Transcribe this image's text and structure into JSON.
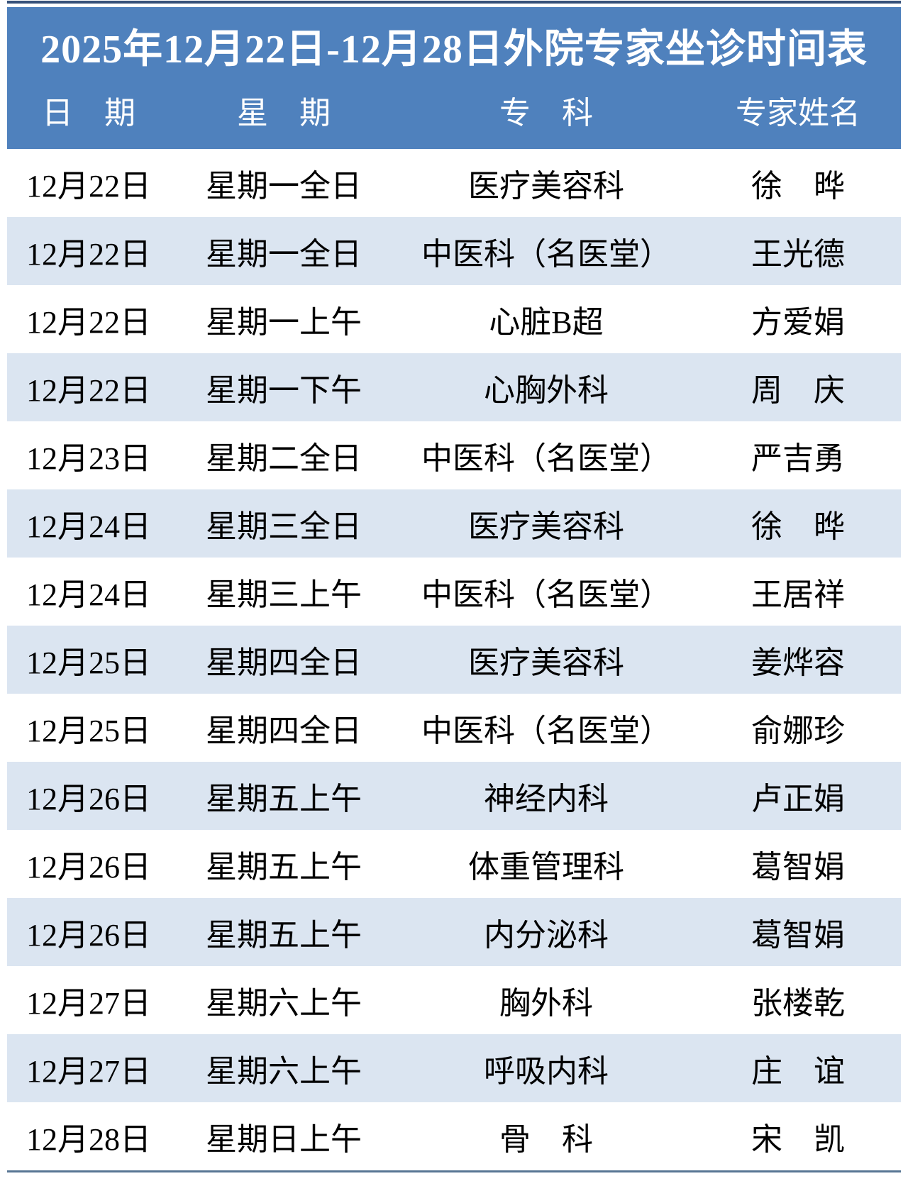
{
  "title": "2025年12月22日-12月28日外院专家坐诊时间表",
  "columns": {
    "date": "日　期",
    "weekday": "星　期",
    "department": "专　科",
    "expert": "专家姓名"
  },
  "rows": [
    {
      "date": "12月22日",
      "weekday": "星期一全日",
      "department": "医疗美容科",
      "expert": "徐　晔"
    },
    {
      "date": "12月22日",
      "weekday": "星期一全日",
      "department": "中医科（名医堂）",
      "expert": "王光德"
    },
    {
      "date": "12月22日",
      "weekday": "星期一上午",
      "department": "心脏B超",
      "expert": "方爱娟"
    },
    {
      "date": "12月22日",
      "weekday": "星期一下午",
      "department": "心胸外科",
      "expert": "周　庆"
    },
    {
      "date": "12月23日",
      "weekday": "星期二全日",
      "department": "中医科（名医堂）",
      "expert": "严吉勇"
    },
    {
      "date": "12月24日",
      "weekday": "星期三全日",
      "department": "医疗美容科",
      "expert": "徐　晔"
    },
    {
      "date": "12月24日",
      "weekday": "星期三上午",
      "department": "中医科（名医堂）",
      "expert": "王居祥"
    },
    {
      "date": "12月25日",
      "weekday": "星期四全日",
      "department": "医疗美容科",
      "expert": "姜烨容"
    },
    {
      "date": "12月25日",
      "weekday": "星期四全日",
      "department": "中医科（名医堂）",
      "expert": "俞娜珍"
    },
    {
      "date": "12月26日",
      "weekday": "星期五上午",
      "department": "神经内科",
      "expert": "卢正娟"
    },
    {
      "date": "12月26日",
      "weekday": "星期五上午",
      "department": "体重管理科",
      "expert": "葛智娟"
    },
    {
      "date": "12月26日",
      "weekday": "星期五上午",
      "department": "内分泌科",
      "expert": "葛智娟"
    },
    {
      "date": "12月27日",
      "weekday": "星期六上午",
      "department": "胸外科",
      "expert": "张楼乾"
    },
    {
      "date": "12月27日",
      "weekday": "星期六上午",
      "department": "呼吸内科",
      "expert": "庄　谊"
    },
    {
      "date": "12月28日",
      "weekday": "星期日上午",
      "department": "骨　科",
      "expert": "宋　凯"
    }
  ],
  "colors": {
    "header_blue": "#4f81bd",
    "stripe_blue": "#dbe5f1",
    "rule_navy": "#587694",
    "rule_navy_dark": "#36517a",
    "title_text": "#ffffff",
    "body_text": "#000000"
  }
}
